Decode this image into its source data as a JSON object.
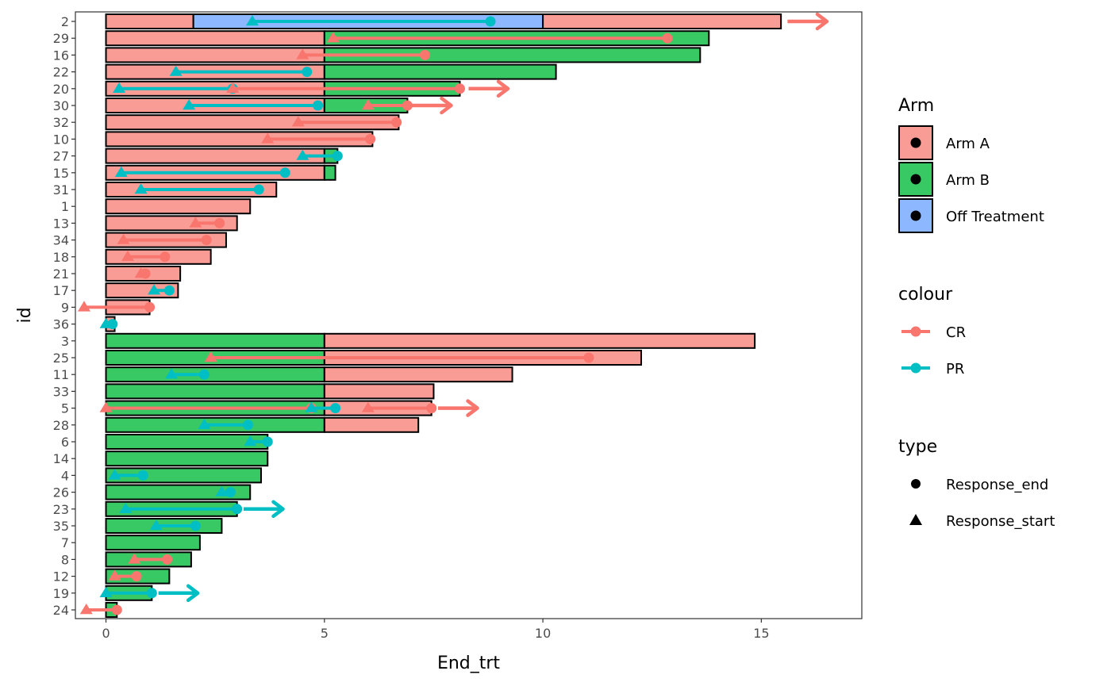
{
  "chart_data": {
    "type": "bar",
    "orientation": "horizontal",
    "title": "",
    "xlabel": "End_trt",
    "ylabel": "id",
    "xlim": [
      -0.7,
      17.3
    ],
    "xticks": [
      0,
      5,
      10,
      15
    ],
    "grid": false,
    "legend_position": "right",
    "colors": {
      "Arm A": "#F8766D",
      "Arm B": "#00BA38",
      "Off Treatment": "#619CFF",
      "CR": "#F8766D",
      "PR": "#00BFC4"
    },
    "ids": [
      "2",
      "29",
      "16",
      "22",
      "20",
      "30",
      "32",
      "10",
      "27",
      "15",
      "31",
      "1",
      "13",
      "34",
      "18",
      "21",
      "17",
      "9",
      "36",
      "3",
      "25",
      "11",
      "33",
      "5",
      "28",
      "6",
      "14",
      "4",
      "26",
      "23",
      "35",
      "7",
      "8",
      "12",
      "19",
      "24"
    ],
    "bars": [
      {
        "id": "2",
        "segments": [
          {
            "arm": "Arm A",
            "start": 0,
            "end": 2
          },
          {
            "arm": "Off Treatment",
            "start": 2,
            "end": 10
          },
          {
            "arm": "Arm A",
            "start": 10,
            "end": 15.45
          }
        ]
      },
      {
        "id": "29",
        "segments": [
          {
            "arm": "Arm A",
            "start": 0,
            "end": 5
          },
          {
            "arm": "Arm B",
            "start": 5,
            "end": 13.8
          }
        ]
      },
      {
        "id": "16",
        "segments": [
          {
            "arm": "Arm A",
            "start": 0,
            "end": 5
          },
          {
            "arm": "Arm B",
            "start": 5,
            "end": 13.6
          }
        ]
      },
      {
        "id": "22",
        "segments": [
          {
            "arm": "Arm A",
            "start": 0,
            "end": 5
          },
          {
            "arm": "Arm B",
            "start": 5,
            "end": 10.3
          }
        ]
      },
      {
        "id": "20",
        "segments": [
          {
            "arm": "Arm A",
            "start": 0,
            "end": 5
          },
          {
            "arm": "Arm B",
            "start": 5,
            "end": 8.1
          }
        ]
      },
      {
        "id": "30",
        "segments": [
          {
            "arm": "Arm A",
            "start": 0,
            "end": 5
          },
          {
            "arm": "Arm B",
            "start": 5,
            "end": 6.9
          }
        ]
      },
      {
        "id": "32",
        "segments": [
          {
            "arm": "Arm A",
            "start": 0,
            "end": 6.7
          }
        ]
      },
      {
        "id": "10",
        "segments": [
          {
            "arm": "Arm A",
            "start": 0,
            "end": 6.1
          }
        ]
      },
      {
        "id": "27",
        "segments": [
          {
            "arm": "Arm A",
            "start": 0,
            "end": 5
          },
          {
            "arm": "Arm B",
            "start": 5,
            "end": 5.3
          }
        ]
      },
      {
        "id": "15",
        "segments": [
          {
            "arm": "Arm A",
            "start": 0,
            "end": 5
          },
          {
            "arm": "Arm B",
            "start": 5,
            "end": 5.25
          }
        ]
      },
      {
        "id": "31",
        "segments": [
          {
            "arm": "Arm A",
            "start": 0,
            "end": 3.9
          }
        ]
      },
      {
        "id": "1",
        "segments": [
          {
            "arm": "Arm A",
            "start": 0,
            "end": 3.3
          }
        ]
      },
      {
        "id": "13",
        "segments": [
          {
            "arm": "Arm A",
            "start": 0,
            "end": 3.0
          }
        ]
      },
      {
        "id": "34",
        "segments": [
          {
            "arm": "Arm A",
            "start": 0,
            "end": 2.75
          }
        ]
      },
      {
        "id": "18",
        "segments": [
          {
            "arm": "Arm A",
            "start": 0,
            "end": 2.4
          }
        ]
      },
      {
        "id": "21",
        "segments": [
          {
            "arm": "Arm A",
            "start": 0,
            "end": 1.7
          }
        ]
      },
      {
        "id": "17",
        "segments": [
          {
            "arm": "Arm A",
            "start": 0,
            "end": 1.65
          }
        ]
      },
      {
        "id": "9",
        "segments": [
          {
            "arm": "Arm A",
            "start": 0,
            "end": 1.0
          }
        ]
      },
      {
        "id": "36",
        "segments": [
          {
            "arm": "Arm A",
            "start": 0,
            "end": 0.2
          }
        ]
      },
      {
        "id": "3",
        "segments": [
          {
            "arm": "Arm B",
            "start": 0,
            "end": 5
          },
          {
            "arm": "Arm A",
            "start": 5,
            "end": 14.85
          }
        ]
      },
      {
        "id": "25",
        "segments": [
          {
            "arm": "Arm B",
            "start": 0,
            "end": 5
          },
          {
            "arm": "Arm A",
            "start": 5,
            "end": 12.25
          }
        ]
      },
      {
        "id": "11",
        "segments": [
          {
            "arm": "Arm B",
            "start": 0,
            "end": 5
          },
          {
            "arm": "Arm A",
            "start": 5,
            "end": 9.3
          }
        ]
      },
      {
        "id": "33",
        "segments": [
          {
            "arm": "Arm B",
            "start": 0,
            "end": 5
          },
          {
            "arm": "Arm A",
            "start": 5,
            "end": 7.5
          }
        ]
      },
      {
        "id": "5",
        "segments": [
          {
            "arm": "Arm B",
            "start": 0,
            "end": 5
          },
          {
            "arm": "Arm A",
            "start": 5,
            "end": 7.45
          }
        ]
      },
      {
        "id": "28",
        "segments": [
          {
            "arm": "Arm B",
            "start": 0,
            "end": 5
          },
          {
            "arm": "Arm A",
            "start": 5,
            "end": 7.15
          }
        ]
      },
      {
        "id": "6",
        "segments": [
          {
            "arm": "Arm B",
            "start": 0,
            "end": 3.7
          }
        ]
      },
      {
        "id": "14",
        "segments": [
          {
            "arm": "Arm B",
            "start": 0,
            "end": 3.7
          }
        ]
      },
      {
        "id": "4",
        "segments": [
          {
            "arm": "Arm B",
            "start": 0,
            "end": 3.55
          }
        ]
      },
      {
        "id": "26",
        "segments": [
          {
            "arm": "Arm B",
            "start": 0,
            "end": 3.3
          }
        ]
      },
      {
        "id": "23",
        "segments": [
          {
            "arm": "Arm B",
            "start": 0,
            "end": 3.0
          }
        ]
      },
      {
        "id": "35",
        "segments": [
          {
            "arm": "Arm B",
            "start": 0,
            "end": 2.65
          }
        ]
      },
      {
        "id": "7",
        "segments": [
          {
            "arm": "Arm B",
            "start": 0,
            "end": 2.15
          }
        ]
      },
      {
        "id": "8",
        "segments": [
          {
            "arm": "Arm B",
            "start": 0,
            "end": 1.95
          }
        ]
      },
      {
        "id": "12",
        "segments": [
          {
            "arm": "Arm B",
            "start": 0,
            "end": 1.45
          }
        ]
      },
      {
        "id": "19",
        "segments": [
          {
            "arm": "Arm B",
            "start": 0,
            "end": 1.05
          }
        ]
      },
      {
        "id": "24",
        "segments": [
          {
            "arm": "Arm B",
            "start": 0,
            "end": 0.25
          }
        ]
      }
    ],
    "responses": [
      {
        "id": "2",
        "colour": "PR",
        "start": 3.35,
        "end": 8.8
      },
      {
        "id": "29",
        "colour": "CR",
        "start": 5.2,
        "end": 12.85
      },
      {
        "id": "16",
        "colour": "CR",
        "start": 4.5,
        "end": 7.3
      },
      {
        "id": "22",
        "colour": "PR",
        "start": 1.6,
        "end": 4.6
      },
      {
        "id": "20",
        "colour": "PR",
        "start": 0.3,
        "end": 2.9
      },
      {
        "id": "20",
        "colour": "CR",
        "start": 2.9,
        "end": 8.1
      },
      {
        "id": "30",
        "colour": "PR",
        "start": 1.9,
        "end": 4.85
      },
      {
        "id": "30",
        "colour": "CR",
        "start": 6.0,
        "end": 6.9
      },
      {
        "id": "32",
        "colour": "CR",
        "start": 4.4,
        "end": 6.65
      },
      {
        "id": "10",
        "colour": "CR",
        "start": 3.7,
        "end": 6.05
      },
      {
        "id": "27",
        "colour": "PR",
        "start": 4.5,
        "end": 5.3
      },
      {
        "id": "15",
        "colour": "PR",
        "start": 0.35,
        "end": 4.1
      },
      {
        "id": "31",
        "colour": "PR",
        "start": 0.8,
        "end": 3.5
      },
      {
        "id": "13",
        "colour": "CR",
        "start": 2.05,
        "end": 2.6
      },
      {
        "id": "34",
        "colour": "CR",
        "start": 0.4,
        "end": 2.3
      },
      {
        "id": "18",
        "colour": "CR",
        "start": 0.5,
        "end": 1.35
      },
      {
        "id": "21",
        "colour": "CR",
        "start": 0.8,
        "end": 0.9
      },
      {
        "id": "17",
        "colour": "PR",
        "start": 1.1,
        "end": 1.45
      },
      {
        "id": "9",
        "colour": "CR",
        "start": -0.5,
        "end": 1.0
      },
      {
        "id": "36",
        "colour": "PR",
        "start": 0.0,
        "end": 0.15
      },
      {
        "id": "25",
        "colour": "CR",
        "start": 2.4,
        "end": 11.05
      },
      {
        "id": "11",
        "colour": "PR",
        "start": 1.5,
        "end": 2.25
      },
      {
        "id": "5",
        "colour": "CR",
        "start": 0.0,
        "end": 4.7
      },
      {
        "id": "5",
        "colour": "PR",
        "start": 4.7,
        "end": 5.25
      },
      {
        "id": "5",
        "colour": "CR",
        "start": 6.0,
        "end": 7.45
      },
      {
        "id": "28",
        "colour": "PR",
        "start": 2.25,
        "end": 3.25
      },
      {
        "id": "6",
        "colour": "PR",
        "start": 3.3,
        "end": 3.7
      },
      {
        "id": "4",
        "colour": "PR",
        "start": 0.2,
        "end": 0.85
      },
      {
        "id": "26",
        "colour": "PR",
        "start": 2.65,
        "end": 2.85
      },
      {
        "id": "23",
        "colour": "PR",
        "start": 0.45,
        "end": 3.0
      },
      {
        "id": "35",
        "colour": "PR",
        "start": 1.15,
        "end": 2.05
      },
      {
        "id": "8",
        "colour": "CR",
        "start": 0.65,
        "end": 1.4
      },
      {
        "id": "12",
        "colour": "CR",
        "start": 0.2,
        "end": 0.7
      },
      {
        "id": "19",
        "colour": "PR",
        "start": 0.0,
        "end": 1.05
      },
      {
        "id": "24",
        "colour": "CR",
        "start": -0.45,
        "end": 0.25
      }
    ],
    "ongoing_arrows": [
      {
        "id": "2",
        "colour": "CR",
        "from": 15.6,
        "to": 16.5
      },
      {
        "id": "20",
        "colour": "CR",
        "from": 8.3,
        "to": 9.2
      },
      {
        "id": "30",
        "colour": "CR",
        "from": 7.0,
        "to": 7.9
      },
      {
        "id": "5",
        "colour": "CR",
        "from": 7.6,
        "to": 8.5
      },
      {
        "id": "23",
        "colour": "PR",
        "from": 3.15,
        "to": 4.05
      },
      {
        "id": "19",
        "colour": "PR",
        "from": 1.2,
        "to": 2.1
      }
    ],
    "legend": {
      "arm": {
        "title": "Arm",
        "entries": [
          "Arm A",
          "Arm B",
          "Off Treatment"
        ]
      },
      "colour": {
        "title": "colour",
        "entries": [
          "CR",
          "PR"
        ]
      },
      "type": {
        "title": "type",
        "entries": [
          "Response_end",
          "Response_start"
        ]
      }
    }
  }
}
